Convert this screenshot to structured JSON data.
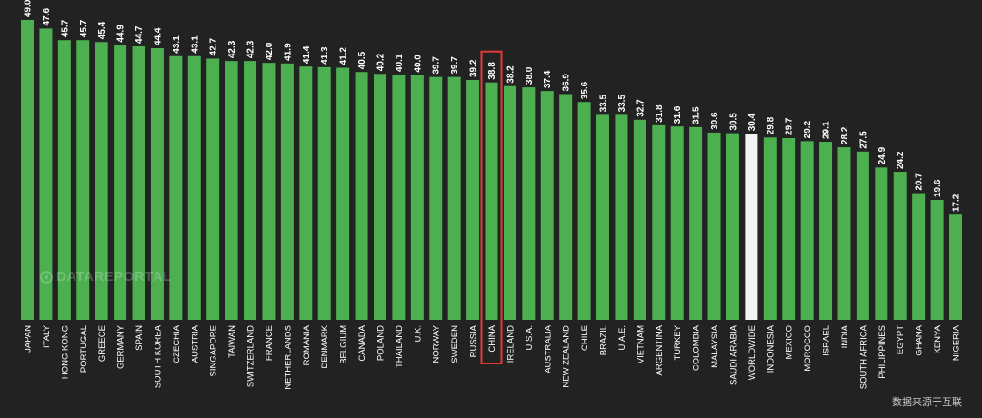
{
  "watermark": "DATAREPORTAL",
  "source_note": "数据来源于互联",
  "colors": {
    "background": "#222222",
    "bar": "#4caf50",
    "highlight_bar": "#f2f2f2",
    "label_text": "#ffffff",
    "highlight_box": "#e53935"
  },
  "chart_data": {
    "type": "bar",
    "title": "",
    "xlabel": "",
    "ylabel": "",
    "ylim": [
      0,
      49
    ],
    "grid": false,
    "legend": "none",
    "highlighted_bar": "WORLDWIDE",
    "boxed_bar": "CHINA",
    "categories": [
      "JAPAN",
      "ITALY",
      "HONG KONG",
      "PORTUGAL",
      "GREECE",
      "GERMANY",
      "SPAIN",
      "SOUTH KOREA",
      "CZECHIA",
      "AUSTRIA",
      "SINGAPORE",
      "TAIWAN",
      "SWITZERLAND",
      "FRANCE",
      "NETHERLANDS",
      "ROMANIA",
      "DENMARK",
      "BELGIUM",
      "CANADA",
      "POLAND",
      "THAILAND",
      "U.K.",
      "NORWAY",
      "SWEDEN",
      "RUSSIA",
      "CHINA",
      "IRELAND",
      "U.S.A.",
      "AUSTRALIA",
      "NEW ZEALAND",
      "CHILE",
      "BRAZIL",
      "U.A.E.",
      "VIETNAM",
      "ARGENTINA",
      "TURKEY",
      "COLOMBIA",
      "MALAYSIA",
      "SAUDI ARABIA",
      "WORLDWIDE",
      "INDONESIA",
      "MEXICO",
      "MOROCCO",
      "ISRAEL",
      "INDIA",
      "SOUTH AFRICA",
      "PHILIPPINES",
      "EGYPT",
      "GHANA",
      "KENYA",
      "NIGERIA"
    ],
    "values": [
      49.0,
      47.6,
      45.7,
      45.7,
      45.4,
      44.9,
      44.7,
      44.4,
      43.1,
      43.1,
      42.7,
      42.3,
      42.3,
      42.0,
      41.9,
      41.4,
      41.3,
      41.2,
      40.5,
      40.2,
      40.1,
      40.0,
      39.7,
      39.7,
      39.2,
      38.8,
      38.2,
      38.0,
      37.4,
      36.9,
      35.6,
      33.5,
      33.5,
      32.7,
      31.8,
      31.6,
      31.5,
      30.6,
      30.5,
      30.4,
      29.8,
      29.7,
      29.2,
      29.1,
      28.2,
      27.5,
      24.9,
      24.2,
      20.7,
      19.6,
      17.2
    ]
  }
}
